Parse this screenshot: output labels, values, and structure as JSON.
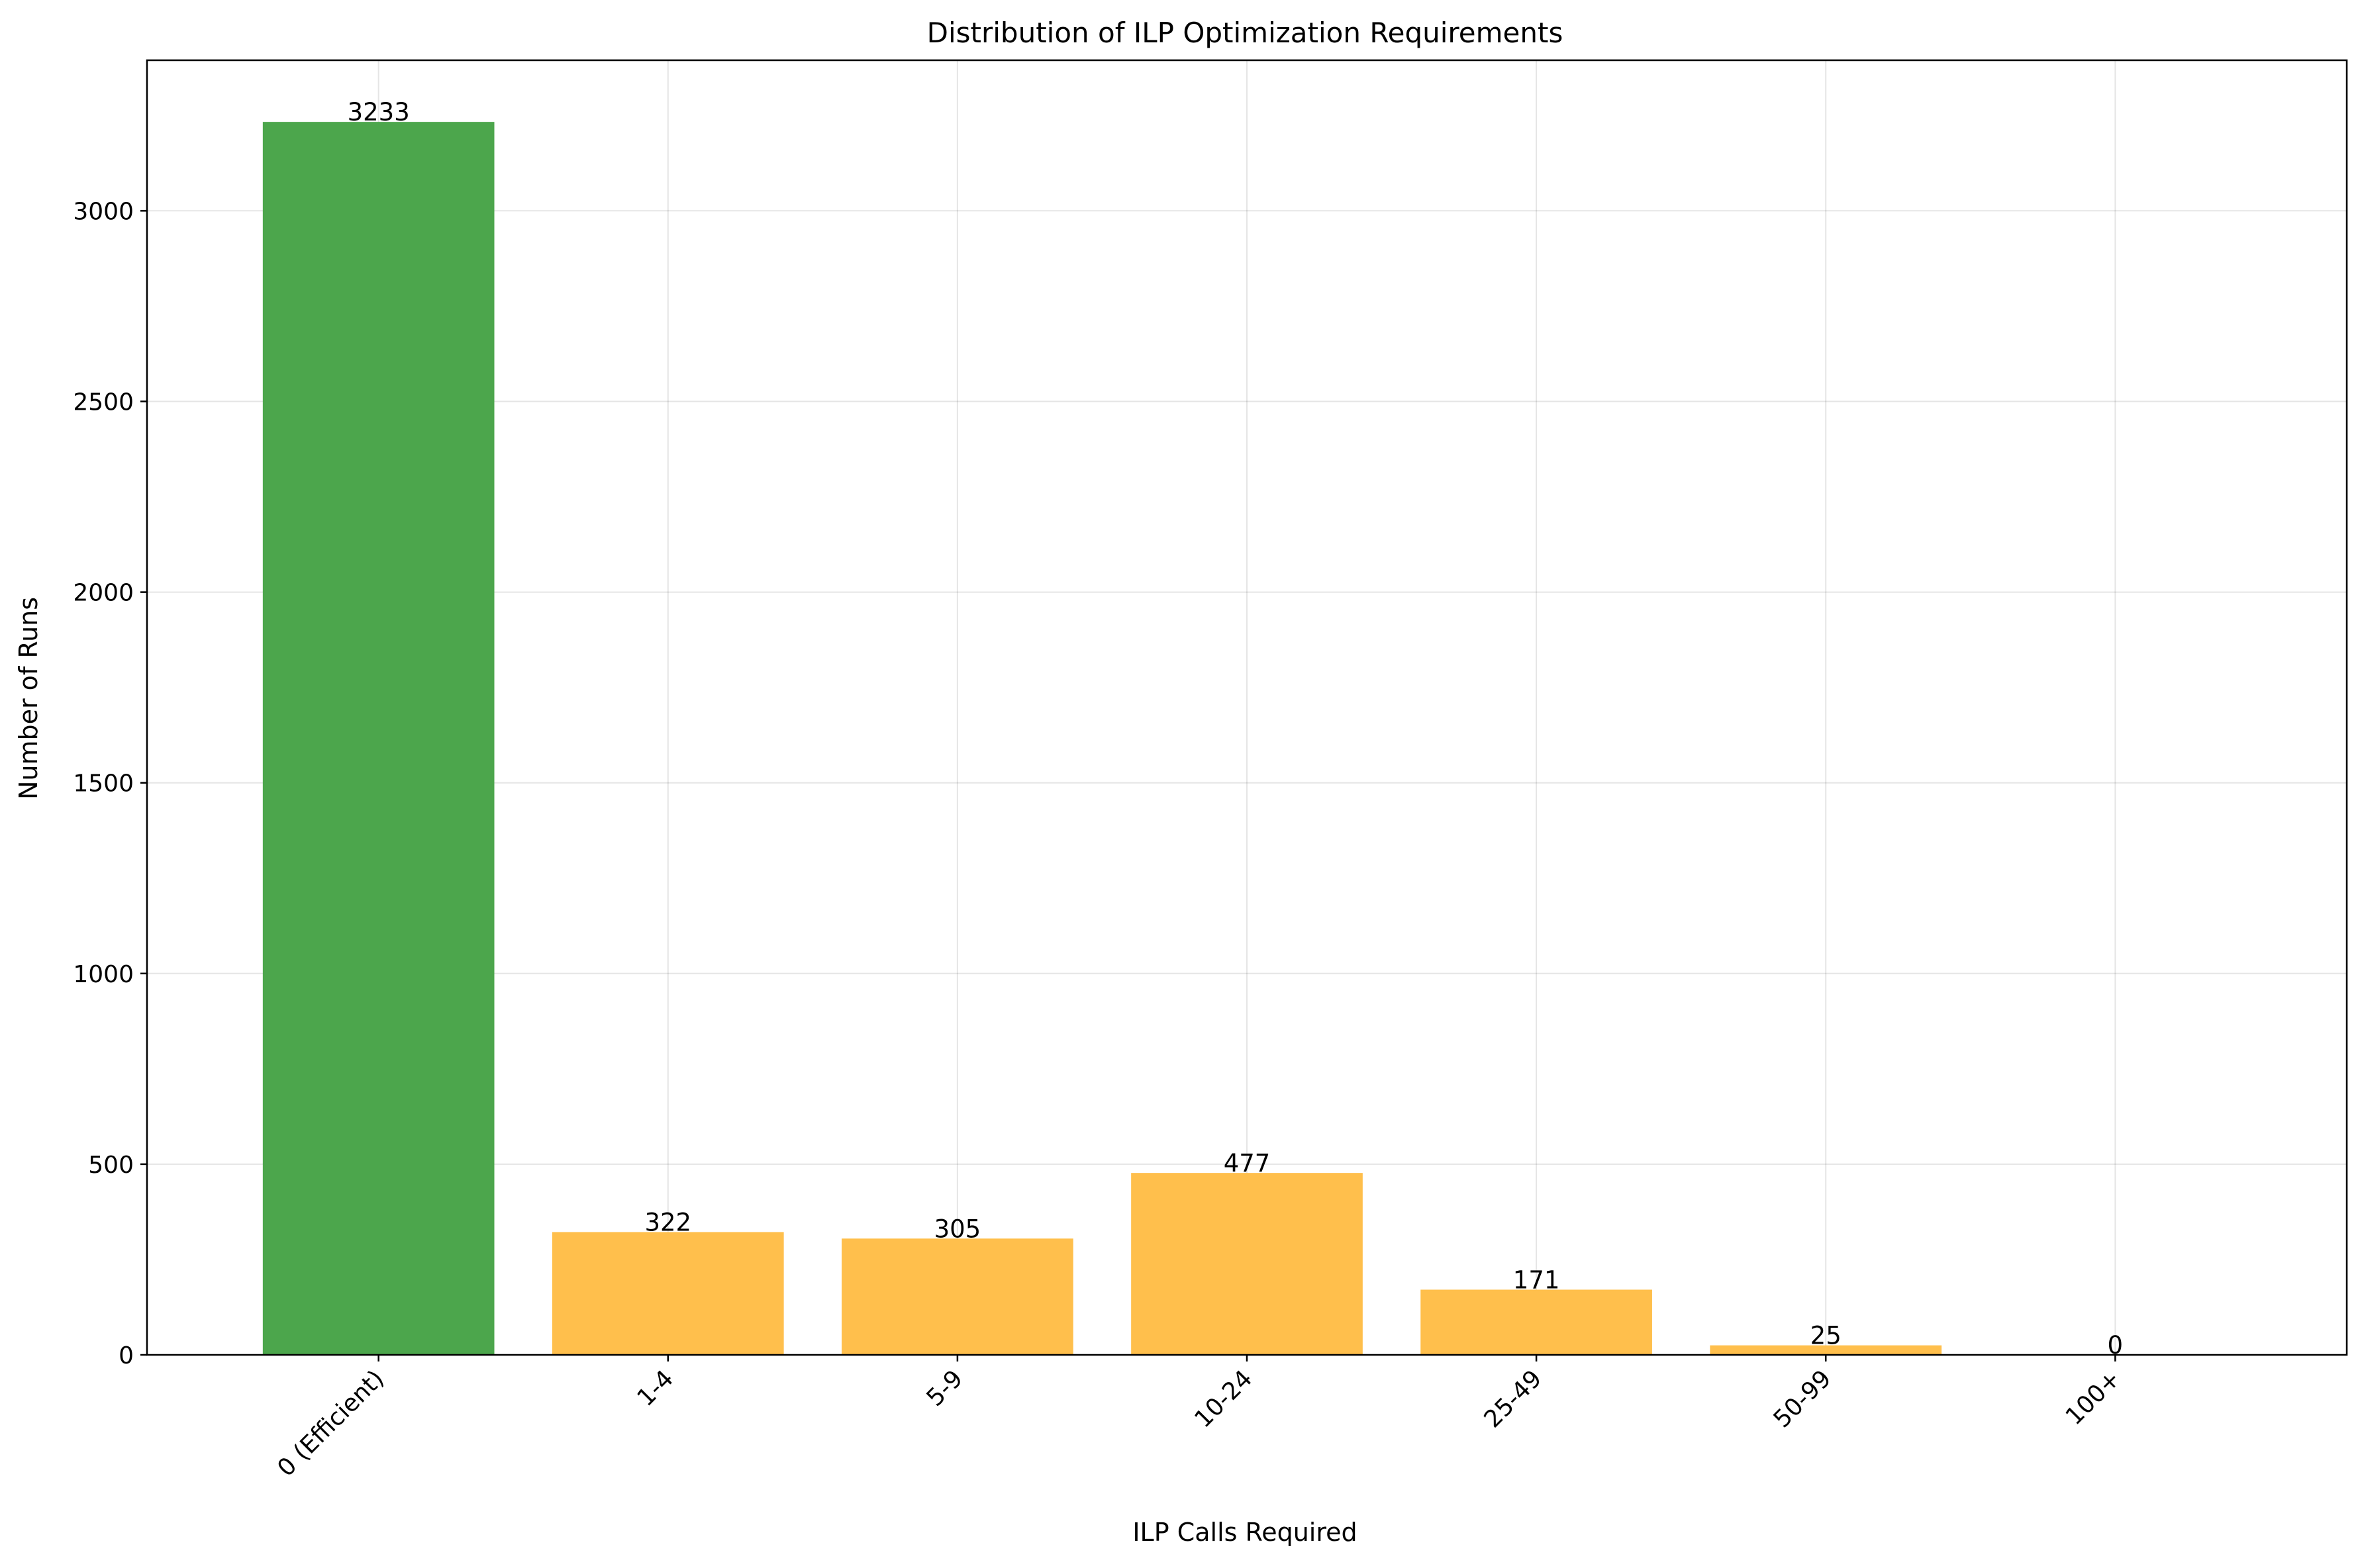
{
  "chart_data": {
    "type": "bar",
    "title": "Distribution of ILP Optimization Requirements",
    "xlabel": "ILP Calls Required",
    "ylabel": "Number of Runs",
    "categories": [
      "0 (Efficient)",
      "1-4",
      "5-9",
      "10-24",
      "25-49",
      "50-99",
      "100+"
    ],
    "values": [
      3233,
      322,
      305,
      477,
      171,
      25,
      0
    ],
    "data_labels": [
      "3233",
      "322",
      "305",
      "477",
      "171",
      "25",
      "0"
    ],
    "bar_colors": [
      "#4ca64c",
      "#ffbf4c",
      "#ffbf4c",
      "#ffbf4c",
      "#ffbf4c",
      "#ffbf4c",
      "#ffbf4c"
    ],
    "ylim": [
      0,
      3394.65
    ],
    "yticks": [
      0,
      500,
      1000,
      1500,
      2000,
      2500,
      3000
    ],
    "ytick_labels": [
      "0",
      "500",
      "1000",
      "1500",
      "2000",
      "2500",
      "3000"
    ],
    "grid": true,
    "legend": "none"
  }
}
